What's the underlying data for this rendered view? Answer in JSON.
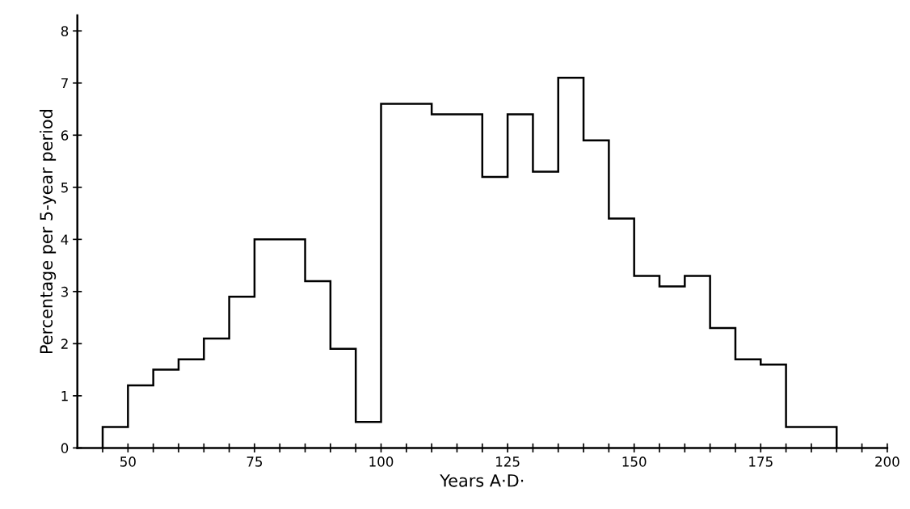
{
  "chart_data": {
    "type": "histogram",
    "xlabel": "Years A·D·",
    "ylabel": "Percentage per 5-year period",
    "color": "#000000",
    "bins": [
      45,
      50,
      55,
      60,
      65,
      70,
      75,
      80,
      85,
      90,
      95,
      100,
      105,
      110,
      115,
      120,
      125,
      130,
      135,
      140,
      145,
      150,
      155,
      160,
      165,
      170,
      175,
      180,
      185,
      190
    ],
    "values": [
      0.4,
      1.2,
      1.5,
      1.7,
      2.1,
      2.9,
      4.0,
      4.0,
      3.2,
      1.9,
      0.5,
      6.6,
      6.6,
      6.4,
      6.4,
      5.2,
      6.4,
      5.3,
      7.1,
      5.9,
      4.4,
      3.3,
      3.1,
      3.3,
      2.3,
      1.7,
      1.6,
      0.4,
      0.4
    ],
    "xlim": [
      40,
      200
    ],
    "ylim": [
      0,
      8.3
    ],
    "xticks": [
      {
        "value": 45,
        "label": null
      },
      50,
      {
        "value": 55,
        "label": null
      },
      {
        "value": 60,
        "label": null
      },
      {
        "value": 65,
        "label": null
      },
      {
        "value": 70,
        "label": null
      },
      75,
      {
        "value": 80,
        "label": null
      },
      {
        "value": 85,
        "label": null
      },
      {
        "value": 90,
        "label": null
      },
      {
        "value": 95,
        "label": null
      },
      100,
      {
        "value": 105,
        "label": null
      },
      {
        "value": 110,
        "label": null
      },
      {
        "value": 115,
        "label": null
      },
      {
        "value": 120,
        "label": null
      },
      125,
      {
        "value": 130,
        "label": null
      },
      {
        "value": 135,
        "label": null
      },
      {
        "value": 140,
        "label": null
      },
      {
        "value": 145,
        "label": null
      },
      150,
      {
        "value": 155,
        "label": null
      },
      {
        "value": 160,
        "label": null
      },
      {
        "value": 165,
        "label": null
      },
      {
        "value": 170,
        "label": null
      },
      175,
      {
        "value": 180,
        "label": null
      },
      {
        "value": 185,
        "label": null
      },
      {
        "value": 190,
        "label": null
      },
      {
        "value": 195,
        "label": null
      },
      200
    ],
    "yticks": [
      0,
      1,
      2,
      3,
      4,
      5,
      6,
      7,
      8
    ],
    "grid": false
  }
}
